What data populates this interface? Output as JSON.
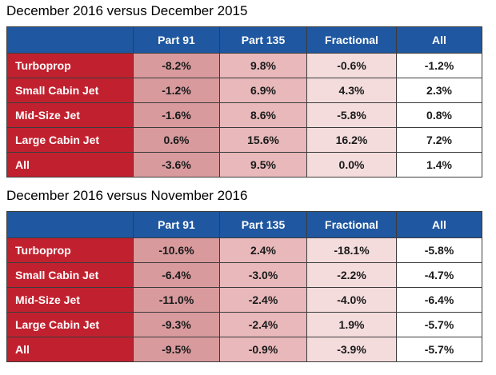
{
  "chart_data": [
    {
      "type": "table",
      "title": "December 2016 versus December 2015",
      "columns": [
        "Part 91",
        "Part 135",
        "Fractional",
        "All"
      ],
      "rows": [
        {
          "label": "Turboprop",
          "values": [
            "-8.2%",
            "9.8%",
            "-0.6%",
            "-1.2%"
          ]
        },
        {
          "label": "Small Cabin Jet",
          "values": [
            "-1.2%",
            "6.9%",
            "4.3%",
            "2.3%"
          ]
        },
        {
          "label": "Mid-Size Jet",
          "values": [
            "-1.6%",
            "8.6%",
            "-5.8%",
            "0.8%"
          ]
        },
        {
          "label": "Large Cabin Jet",
          "values": [
            "0.6%",
            "15.6%",
            "16.2%",
            "7.2%"
          ]
        },
        {
          "label": "All",
          "values": [
            "-3.6%",
            "9.5%",
            "0.0%",
            "1.4%"
          ]
        }
      ]
    },
    {
      "type": "table",
      "title": "December 2016 versus November 2016",
      "columns": [
        "Part 91",
        "Part 135",
        "Fractional",
        "All"
      ],
      "rows": [
        {
          "label": "Turboprop",
          "values": [
            "-10.6%",
            "2.4%",
            "-18.1%",
            "-5.8%"
          ]
        },
        {
          "label": "Small Cabin Jet",
          "values": [
            "-6.4%",
            "-3.0%",
            "-2.2%",
            "-4.7%"
          ]
        },
        {
          "label": "Mid-Size Jet",
          "values": [
            "-11.0%",
            "-2.4%",
            "-4.0%",
            "-6.4%"
          ]
        },
        {
          "label": "Large Cabin Jet",
          "values": [
            "-9.3%",
            "-2.4%",
            "1.9%",
            "-5.7%"
          ]
        },
        {
          "label": "All",
          "values": [
            "-9.5%",
            "-0.9%",
            "-3.9%",
            "-5.7%"
          ]
        }
      ]
    }
  ],
  "colors": {
    "header": "#1f57a0",
    "row_label": "#c1212f",
    "column_shades": [
      "#d89a9d",
      "#e8b8ba",
      "#f4dcdd",
      "#ffffff"
    ]
  }
}
